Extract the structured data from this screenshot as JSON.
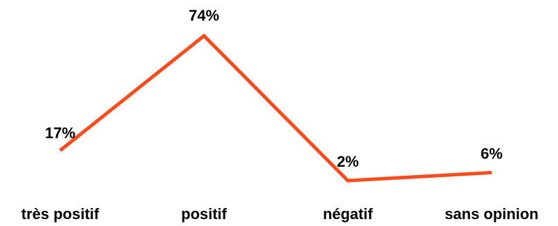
{
  "chart_data": {
    "type": "line",
    "categories": [
      "très positif",
      "positif",
      "négatif",
      "sans opinion"
    ],
    "series": [
      {
        "values": [
          17,
          74,
          2,
          6
        ],
        "data_labels": [
          "17%",
          "74%",
          "2%",
          "6%"
        ],
        "color": "#FF4A1C"
      }
    ],
    "ylim": [
      0,
      74
    ],
    "grid": false,
    "legend": "none"
  }
}
